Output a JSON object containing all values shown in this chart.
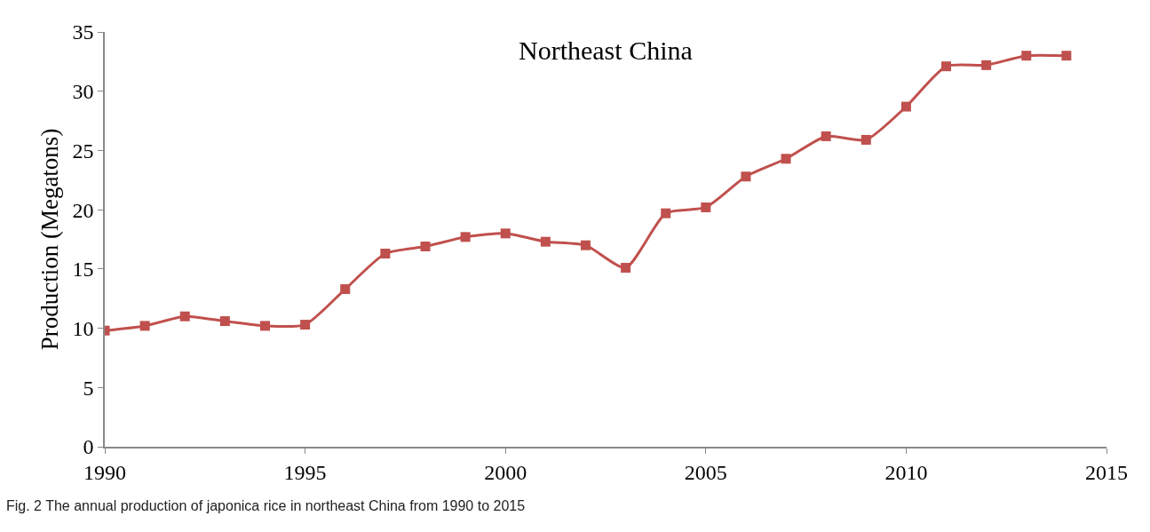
{
  "chart_data": {
    "type": "line",
    "title": "Northeast China",
    "ylabel": "Production (Megatons)",
    "x": [
      1990,
      1991,
      1992,
      1993,
      1994,
      1995,
      1996,
      1997,
      1998,
      1999,
      2000,
      2001,
      2002,
      2003,
      2004,
      2005,
      2006,
      2007,
      2008,
      2009,
      2010,
      2011,
      2012,
      2013,
      2014
    ],
    "series": [
      {
        "color": "#c0504d",
        "values": [
          9.8,
          10.2,
          11.0,
          10.6,
          10.2,
          10.3,
          13.3,
          16.3,
          16.9,
          17.7,
          18.0,
          17.3,
          17.0,
          15.1,
          19.7,
          20.2,
          22.8,
          24.3,
          26.2,
          25.9,
          28.7,
          32.1,
          32.2,
          33.0,
          33.0
        ]
      }
    ],
    "xlim": [
      1990,
      2015
    ],
    "xticks": [
      1990,
      1995,
      2000,
      2005,
      2010,
      2015
    ],
    "ylim": [
      0,
      35
    ],
    "yticks": [
      0,
      5,
      10,
      15,
      20,
      25,
      30,
      35
    ],
    "marker": "square",
    "line_style": "solid",
    "annotations": [
      "Fig. 2 The annual production of japonica rice in northeast China from 1990 to 2015"
    ]
  }
}
